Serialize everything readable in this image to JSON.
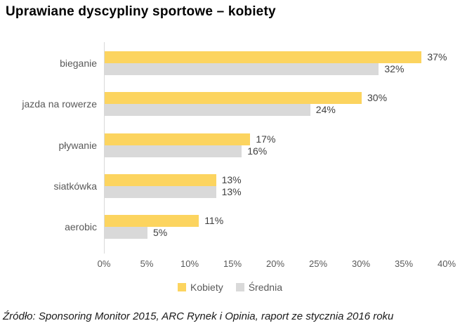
{
  "title": "Uprawiane dyscypliny sportowe – kobiety",
  "source": "Źródło: Sponsoring Monitor 2015, ARC Rynek i Opinia, raport ze stycznia 2016 roku",
  "colors": {
    "kobiety": "#FCD45F",
    "srednia": "#D9D9D9",
    "axis_line": "#D9D9D9",
    "category_text": "#595959",
    "tick_text": "#595959",
    "value_text": "#404040"
  },
  "chart_data": {
    "type": "bar",
    "orientation": "horizontal",
    "title": "Uprawiane dyscypliny sportowe – kobiety",
    "categories": [
      "bieganie",
      "jazda na rowerze",
      "pływanie",
      "siatkówka",
      "aerobic"
    ],
    "series": [
      {
        "name": "Kobiety",
        "color": "#FCD45F",
        "values": [
          37,
          30,
          17,
          13,
          11
        ]
      },
      {
        "name": "Średnia",
        "color": "#D9D9D9",
        "values": [
          32,
          24,
          16,
          13,
          5
        ]
      }
    ],
    "value_suffix": "%",
    "data_labels": true,
    "xlim": [
      0,
      40
    ],
    "x_ticks": [
      "0%",
      "5%",
      "10%",
      "15%",
      "20%",
      "25%",
      "30%",
      "35%",
      "40%"
    ],
    "grid": false,
    "legend_position": "bottom"
  }
}
